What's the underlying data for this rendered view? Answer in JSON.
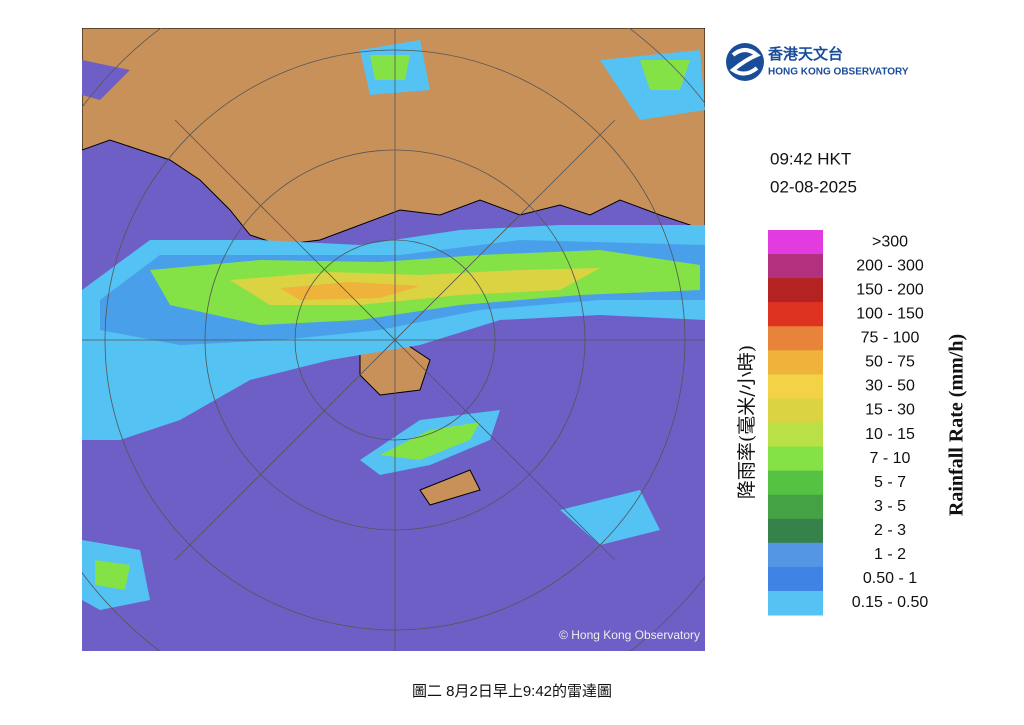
{
  "logo": {
    "chinese": "香港天文台",
    "english": "HONG KONG OBSERVATORY"
  },
  "time": "09:42 HKT",
  "date": "02-08-2025",
  "map_credit": "© Hong Kong Observatory",
  "legend": {
    "title_chinese": "降雨率(毫米/小時)",
    "title_english": "Rainfall Rate (mm/h)",
    "items": [
      {
        "label": ">300",
        "color": "#e23be0"
      },
      {
        "label": "200 - 300",
        "color": "#b1317f"
      },
      {
        "label": "150 - 200",
        "color": "#b52222"
      },
      {
        "label": "100 - 150",
        "color": "#df3322"
      },
      {
        "label": "75 - 100",
        "color": "#e8843a"
      },
      {
        "label": "50 - 75",
        "color": "#efb23a"
      },
      {
        "label": "30 - 50",
        "color": "#f3d246"
      },
      {
        "label": "15 - 30",
        "color": "#dcd343"
      },
      {
        "label": "10 - 15",
        "color": "#b9e147"
      },
      {
        "label": "7 - 10",
        "color": "#84e246"
      },
      {
        "label": "5 - 7",
        "color": "#55c243"
      },
      {
        "label": "3 - 5",
        "color": "#44a244"
      },
      {
        "label": "2 - 3",
        "color": "#35824a"
      },
      {
        "label": "1 - 2",
        "color": "#5496e4"
      },
      {
        "label": "0.50 - 1",
        "color": "#3f83e4"
      },
      {
        "label": "0.15 - 0.50",
        "color": "#54c2f2"
      }
    ]
  },
  "caption": "圖二 8月2日早上9:42的雷達圖"
}
